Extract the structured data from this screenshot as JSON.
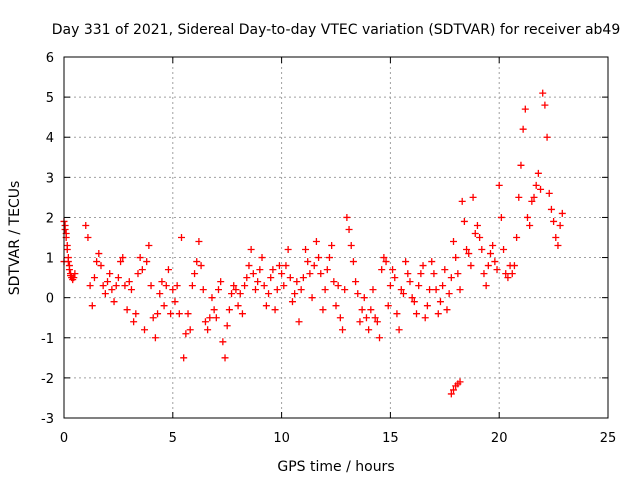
{
  "chart_data": {
    "type": "scatter",
    "title": "Day 331 of 2021, Sidereal Day-to-day VTEC variation (SDTVAR) for receiver ab49",
    "xlabel": "GPS time / hours",
    "ylabel": "SDTVAR / TECUs",
    "xlim": [
      0,
      25
    ],
    "ylim": [
      -3,
      6
    ],
    "xticks": [
      0,
      5,
      10,
      15,
      20,
      25
    ],
    "yticks": [
      -3,
      -2,
      -1,
      0,
      1,
      2,
      3,
      4,
      5,
      6
    ],
    "grid": true,
    "marker": "+",
    "color": "#ff0000",
    "series": [
      {
        "name": "SDTVAR",
        "x": [
          0.0,
          0.05,
          0.1,
          0.15,
          0.2,
          0.25,
          0.3,
          0.35,
          0.4,
          0.45,
          0.5,
          0.0,
          0.05,
          0.1,
          0.15,
          0.2,
          0.25,
          0.3,
          1.0,
          1.1,
          1.2,
          1.3,
          1.4,
          1.5,
          1.6,
          1.7,
          1.8,
          1.9,
          2.0,
          2.1,
          2.2,
          2.3,
          2.4,
          2.5,
          2.6,
          2.7,
          2.8,
          2.9,
          3.0,
          3.1,
          3.2,
          3.3,
          3.4,
          3.5,
          3.6,
          3.7,
          3.8,
          3.9,
          4.0,
          4.1,
          4.2,
          4.3,
          4.4,
          4.5,
          4.6,
          4.7,
          4.8,
          4.9,
          5.0,
          5.1,
          5.2,
          5.3,
          5.4,
          5.5,
          5.6,
          5.7,
          5.8,
          5.9,
          6.0,
          6.1,
          6.2,
          6.3,
          6.4,
          6.5,
          6.6,
          6.7,
          6.8,
          6.9,
          7.0,
          7.1,
          7.2,
          7.3,
          7.4,
          7.5,
          7.6,
          7.7,
          7.8,
          7.9,
          8.0,
          8.1,
          8.2,
          8.3,
          8.4,
          8.5,
          8.6,
          8.7,
          8.8,
          8.9,
          9.0,
          9.1,
          9.2,
          9.3,
          9.4,
          9.5,
          9.6,
          9.7,
          9.8,
          9.9,
          10.0,
          10.1,
          10.2,
          10.3,
          10.4,
          10.5,
          10.6,
          10.7,
          10.8,
          10.9,
          11.0,
          11.1,
          11.2,
          11.3,
          11.4,
          11.5,
          11.6,
          11.7,
          11.8,
          11.9,
          12.0,
          12.1,
          12.2,
          12.3,
          12.4,
          12.5,
          12.6,
          12.7,
          12.8,
          12.9,
          13.0,
          13.1,
          13.2,
          13.3,
          13.4,
          13.5,
          13.6,
          13.7,
          13.8,
          13.9,
          14.0,
          14.1,
          14.2,
          14.3,
          14.4,
          14.5,
          14.6,
          14.7,
          14.8,
          14.9,
          15.0,
          15.1,
          15.2,
          15.3,
          15.4,
          15.5,
          15.6,
          15.7,
          15.8,
          15.9,
          16.0,
          16.1,
          16.2,
          16.3,
          16.4,
          16.5,
          16.6,
          16.7,
          16.8,
          16.9,
          17.0,
          17.1,
          17.2,
          17.3,
          17.4,
          17.5,
          17.6,
          17.7,
          17.8,
          17.9,
          18.0,
          18.1,
          18.2,
          18.3,
          18.4,
          18.5,
          18.6,
          18.7,
          18.8,
          18.9,
          17.8,
          17.9,
          18.0,
          18.1,
          18.2,
          19.0,
          19.1,
          19.2,
          19.3,
          19.4,
          19.5,
          19.6,
          19.7,
          19.8,
          19.9,
          20.0,
          20.1,
          20.2,
          20.3,
          20.4,
          20.5,
          20.6,
          20.7,
          20.8,
          20.9,
          21.0,
          21.1,
          21.2,
          21.3,
          21.4,
          21.5,
          21.6,
          21.7,
          21.8,
          21.9,
          22.0,
          22.1,
          22.2,
          22.3,
          22.4,
          22.5,
          22.6,
          22.7,
          22.8,
          22.9
        ],
        "y": [
          1.9,
          1.7,
          1.5,
          1.2,
          0.9,
          0.7,
          0.55,
          0.5,
          0.45,
          0.5,
          0.6,
          0.9,
          1.8,
          1.6,
          1.3,
          1.0,
          0.8,
          0.6,
          1.8,
          1.5,
          0.3,
          -0.2,
          0.5,
          0.9,
          1.1,
          0.8,
          0.3,
          0.1,
          0.4,
          0.6,
          0.2,
          -0.1,
          0.3,
          0.5,
          0.9,
          1.0,
          0.3,
          -0.3,
          0.4,
          0.2,
          -0.6,
          -0.4,
          0.6,
          1.0,
          0.7,
          -0.8,
          0.9,
          1.3,
          0.3,
          -0.5,
          -1.0,
          -0.4,
          0.1,
          0.4,
          -0.2,
          0.3,
          0.7,
          -0.4,
          0.2,
          -0.1,
          0.3,
          -0.4,
          1.5,
          -1.5,
          -0.9,
          -0.4,
          -0.8,
          0.3,
          0.6,
          0.9,
          1.4,
          0.8,
          0.2,
          -0.6,
          -0.8,
          -0.5,
          0.0,
          -0.3,
          -0.5,
          0.2,
          0.4,
          -1.1,
          -1.5,
          -0.7,
          -0.3,
          0.1,
          0.3,
          0.2,
          -0.2,
          0.1,
          -0.4,
          0.3,
          0.5,
          0.8,
          1.2,
          0.6,
          0.2,
          0.4,
          0.7,
          1.0,
          0.3,
          -0.2,
          0.1,
          0.5,
          0.7,
          -0.3,
          0.2,
          0.8,
          0.6,
          0.3,
          0.8,
          1.2,
          0.5,
          -0.1,
          0.1,
          0.4,
          -0.6,
          0.2,
          0.5,
          1.2,
          0.9,
          0.6,
          0.0,
          0.8,
          1.4,
          1.0,
          0.6,
          -0.3,
          0.2,
          0.7,
          1.0,
          1.3,
          0.4,
          -0.2,
          0.3,
          -0.5,
          -0.8,
          0.2,
          2.0,
          1.7,
          1.3,
          0.9,
          0.4,
          0.1,
          -0.6,
          -0.3,
          0.0,
          -0.5,
          -0.8,
          -0.3,
          0.2,
          -0.5,
          -0.6,
          -1.0,
          0.7,
          1.0,
          0.9,
          -0.2,
          0.3,
          0.7,
          0.5,
          -0.4,
          -0.8,
          0.2,
          0.1,
          0.9,
          0.6,
          0.4,
          0.0,
          -0.1,
          -0.4,
          0.3,
          0.6,
          0.8,
          -0.5,
          -0.2,
          0.2,
          0.9,
          0.6,
          0.2,
          -0.4,
          -0.1,
          0.3,
          0.7,
          -0.3,
          0.1,
          0.5,
          1.4,
          1.0,
          0.6,
          0.2,
          2.4,
          1.9,
          1.2,
          1.1,
          0.8,
          2.5,
          1.6,
          -2.4,
          -2.3,
          -2.2,
          -2.15,
          -2.1,
          1.8,
          1.5,
          1.2,
          0.6,
          0.3,
          0.8,
          1.1,
          1.3,
          0.9,
          0.7,
          2.8,
          2.0,
          1.2,
          0.6,
          0.5,
          0.8,
          0.6,
          0.8,
          1.5,
          2.5,
          3.3,
          4.2,
          4.7,
          2.0,
          1.8,
          2.4,
          2.5,
          2.8,
          3.1,
          2.7,
          5.1,
          4.8,
          4.0,
          2.6,
          2.2,
          1.9,
          1.5,
          1.3,
          1.8,
          2.1
        ]
      }
    ]
  }
}
